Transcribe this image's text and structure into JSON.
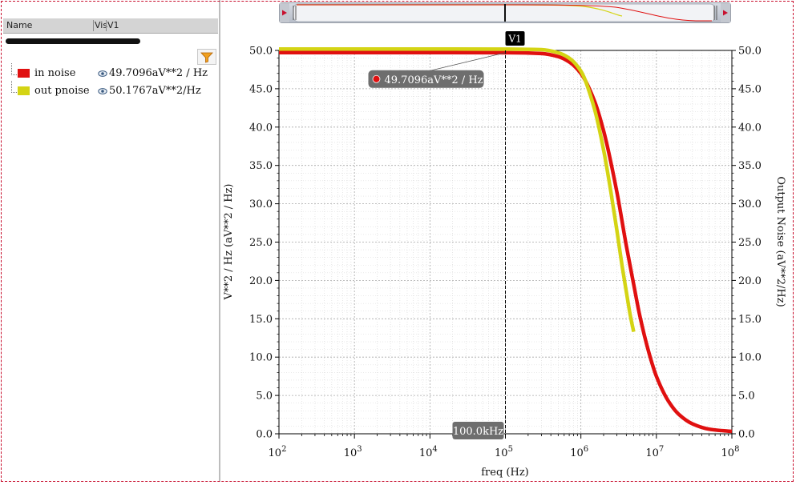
{
  "table": {
    "col_name": "Name",
    "col_vis": "Vis",
    "col_v1": "V1"
  },
  "legend": [
    {
      "name": "in noise",
      "value": "49.7096aV**2 / Hz",
      "color": "#e01010"
    },
    {
      "name": "out pnoise",
      "value": "50.1767aV**2/Hz",
      "color": "#d4d414"
    }
  ],
  "icons": {
    "filter": "filter-icon",
    "visibility": "eye-icon"
  },
  "chart_data": {
    "type": "line",
    "xlabel": "freq (Hz)",
    "ylabel": "V**2 / Hz (aV**2 / Hz)",
    "y2label": "Output Noise (aV**2/Hz)",
    "xscale": "log",
    "xlim": [
      100,
      100000000
    ],
    "ylim": [
      0,
      50
    ],
    "x_ticks": [
      "2",
      "3",
      "4",
      "5",
      "6",
      "7",
      "8"
    ],
    "y_ticks": [
      "0.0",
      "5.0",
      "10.0",
      "15.0",
      "20.0",
      "25.0",
      "30.0",
      "35.0",
      "40.0",
      "45.0",
      "50.0"
    ],
    "grid": true,
    "series": [
      {
        "name": "in noise",
        "color": "#e01010",
        "x": [
          100,
          1000,
          10000,
          100000,
          300000,
          500000,
          700000,
          1000000,
          1500000,
          2000000,
          3000000,
          4000000,
          5000000,
          6000000,
          8000000,
          10000000,
          15000000,
          20000000,
          30000000,
          50000000,
          100000000
        ],
        "y": [
          49.71,
          49.71,
          49.71,
          49.7,
          49.6,
          49.2,
          48.5,
          47.0,
          43.5,
          39.5,
          31.5,
          24.5,
          19.5,
          15.5,
          10.5,
          7.5,
          4.0,
          2.5,
          1.3,
          0.6,
          0.3
        ]
      },
      {
        "name": "out pnoise",
        "color": "#d4d414",
        "x": [
          100,
          1000,
          10000,
          100000,
          300000,
          500000,
          700000,
          1000000,
          1500000,
          2000000,
          2500000,
          3000000,
          3500000,
          4000000,
          4500000,
          5000000
        ],
        "y": [
          50.18,
          50.18,
          50.18,
          50.17,
          50.1,
          49.7,
          49.0,
          47.3,
          42.5,
          37.0,
          31.5,
          26.5,
          22.0,
          18.5,
          15.5,
          13.3
        ]
      }
    ],
    "marker": {
      "label": "V1",
      "x_label": "100.0kHz",
      "y_label": "49.7096aV**2 / Hz",
      "x": 100000,
      "y": 49.7096
    }
  }
}
